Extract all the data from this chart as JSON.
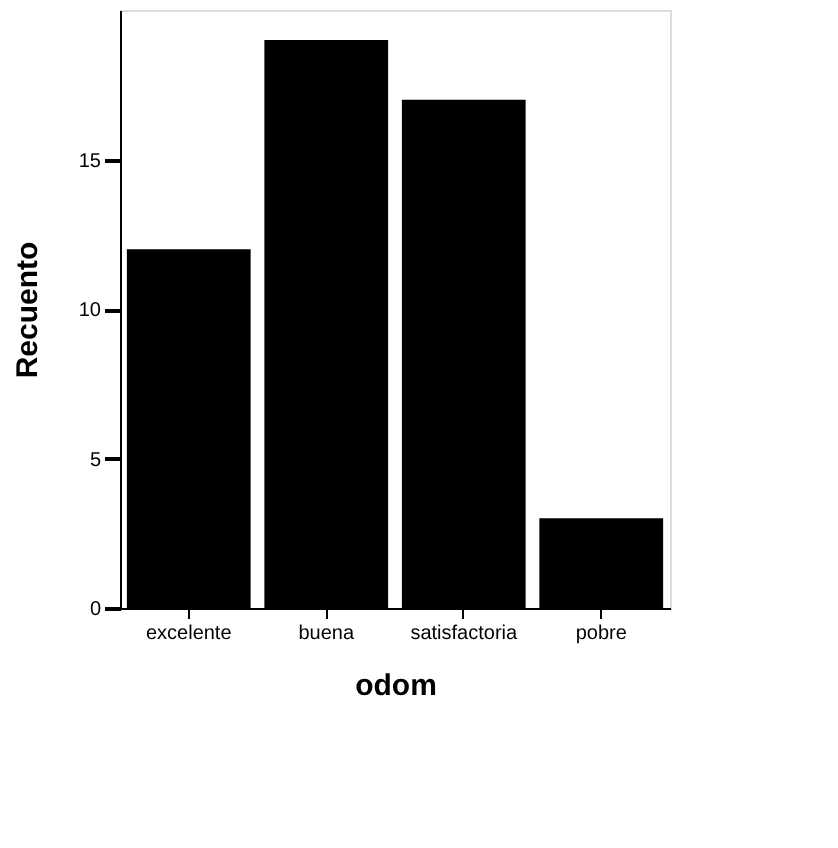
{
  "chart_data": {
    "type": "bar",
    "xlabel": "odom",
    "ylabel": "Recuento",
    "categories": [
      "excelente",
      "buena",
      "satisfactoria",
      "pobre"
    ],
    "values": [
      12,
      19,
      17,
      3
    ],
    "color": "#000000",
    "ylim": [
      0,
      20
    ],
    "yticks": [
      0,
      5,
      10,
      15
    ],
    "grid": false
  }
}
